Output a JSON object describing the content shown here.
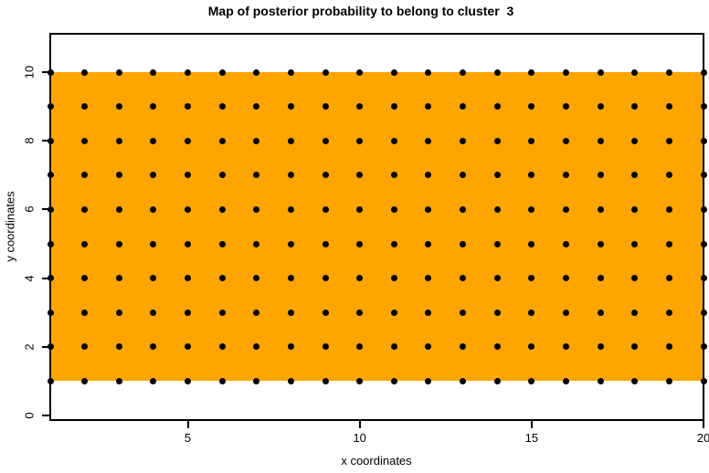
{
  "chart": {
    "title": "Map of posterior probability to belong to cluster  3",
    "x_axis": {
      "label": "x coordinates"
    },
    "y_axis": {
      "label": "y coordinates"
    }
  },
  "chart_data": {
    "type": "heatmap",
    "title": "Map of posterior probability to belong to cluster  3",
    "xlabel": "x coordinates",
    "ylabel": "y coordinates",
    "xlim": [
      1,
      20
    ],
    "ylim": [
      0,
      11
    ],
    "x_ticks": [
      5,
      10,
      15,
      20
    ],
    "y_ticks": [
      0,
      2,
      4,
      6,
      8,
      10
    ],
    "grid": false,
    "legend_position": "none",
    "region": {
      "description": "uniform posterior-probability region shown as a solid filled rectangle",
      "x_range": [
        1,
        20
      ],
      "y_range": [
        1,
        10
      ],
      "fill_color": "#FFA500"
    },
    "points": {
      "description": "grid of observation points at every integer coordinate",
      "x": [
        1,
        2,
        3,
        4,
        5,
        6,
        7,
        8,
        9,
        10,
        11,
        12,
        13,
        14,
        15,
        16,
        17,
        18,
        19,
        20
      ],
      "y": [
        1,
        2,
        3,
        4,
        5,
        6,
        7,
        8,
        9,
        10
      ],
      "marker": "filled-circle",
      "color": "#000000"
    },
    "colors": {
      "axis": "#000000",
      "background": "#FFFFFF",
      "region_fill": "#FFA500",
      "point": "#000000"
    }
  }
}
